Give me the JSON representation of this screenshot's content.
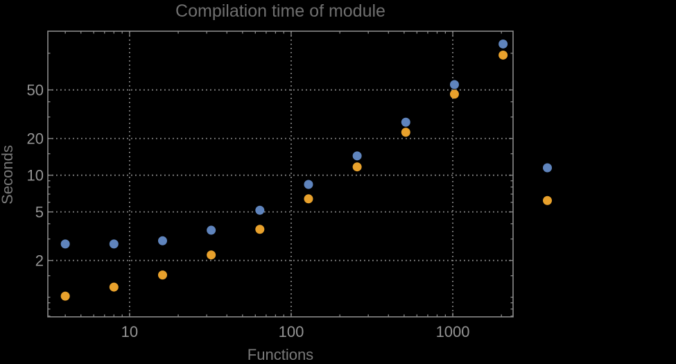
{
  "figure": {
    "background": "#000000"
  },
  "chart_data": {
    "type": "scatter",
    "title": "Compilation time of module",
    "xlabel": "Functions",
    "ylabel": "Seconds",
    "x_scale": "log",
    "y_scale": "log",
    "x_range": [
      3.12,
      2361
    ],
    "y_range": [
      0.69,
      151.5
    ],
    "grid": "dotted lines at labeled major ticks only",
    "legend": "none",
    "x": [
      4,
      8,
      16,
      32,
      64,
      128,
      256,
      512,
      1024,
      2048
    ],
    "series": [
      {
        "name": "series-blue",
        "color": "#5f84bd",
        "values": [
          2.73,
          2.73,
          2.9,
          3.54,
          5.16,
          8.4,
          14.4,
          27.2,
          55.3,
          119
        ]
      },
      {
        "name": "series-orange",
        "color": "#e8a12c",
        "values": [
          1.02,
          1.21,
          1.52,
          2.22,
          3.6,
          6.4,
          11.7,
          22.5,
          46.2,
          96.5
        ]
      }
    ],
    "points_outside_frame": [
      {
        "series": "series-blue",
        "x": 3850,
        "y": 11.5
      },
      {
        "series": "series-orange",
        "x": 3850,
        "y": 6.2
      }
    ],
    "x_ticks": {
      "major": [
        10,
        100,
        1000
      ],
      "labels": [
        "10",
        "100",
        "1000"
      ],
      "minor": [
        4,
        5,
        6,
        7,
        8,
        9,
        20,
        30,
        40,
        50,
        60,
        70,
        80,
        90,
        200,
        300,
        400,
        500,
        600,
        700,
        800,
        900,
        2000
      ]
    },
    "y_ticks": {
      "major": [
        2,
        5,
        10,
        20,
        50
      ],
      "labels": [
        "2",
        "5",
        "10",
        "20",
        "50"
      ],
      "minor": [
        0.7,
        0.8,
        0.9,
        1,
        1.5,
        3,
        4,
        6,
        7,
        8,
        9,
        15,
        30,
        40,
        100
      ]
    },
    "style": {
      "frame_color": "#8c8c8c",
      "grid_color": "#8c8c8c",
      "tick_color": "#8c8c8c",
      "tick_label_color": "#949494",
      "title_color": "#6f6f6f",
      "axis_label_color": "#7a7a7a"
    }
  }
}
